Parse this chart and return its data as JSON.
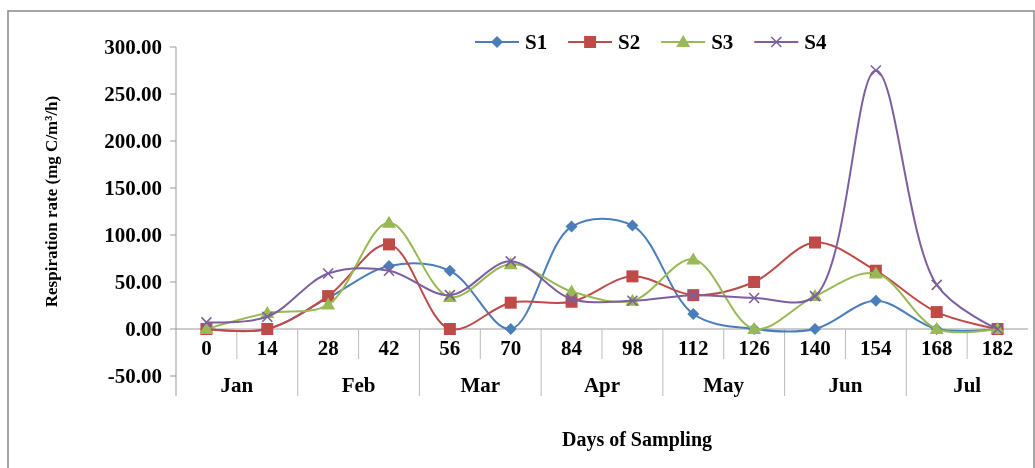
{
  "chart_data": {
    "type": "line",
    "xlabel": "Days of Sampling",
    "ylabel": "Respiration rate (mg C/m³/h)",
    "categories": [
      "0",
      "14",
      "28",
      "42",
      "56",
      "70",
      "84",
      "98",
      "112",
      "126",
      "140",
      "154",
      "168",
      "182"
    ],
    "annotations": [
      "Jan",
      "Feb",
      "Mar",
      "Apr",
      "May",
      "Jun",
      "Jul"
    ],
    "series": [
      {
        "name": "S1",
        "color": "#4a7ebb",
        "marker": "diamond",
        "values": [
          0,
          0,
          33,
          67,
          62,
          0,
          109,
          110,
          16,
          0,
          0,
          30,
          0,
          0
        ]
      },
      {
        "name": "S2",
        "color": "#be4b48",
        "marker": "square",
        "values": [
          0,
          0,
          35,
          90,
          0,
          28,
          29,
          56,
          36,
          50,
          92,
          62,
          18,
          0
        ]
      },
      {
        "name": "S3",
        "color": "#98b954",
        "marker": "triangle",
        "values": [
          0,
          17,
          26,
          113,
          34,
          69,
          40,
          30,
          74,
          0,
          35,
          59,
          0,
          0
        ]
      },
      {
        "name": "S4",
        "color": "#7d5fa0",
        "marker": "cross",
        "values": [
          7,
          13,
          59,
          62,
          36,
          72,
          32,
          30,
          36,
          33,
          35,
          275,
          47,
          0
        ]
      }
    ],
    "ylim": [
      -50,
      300
    ],
    "yticks": [
      {
        "value": -50,
        "label": "-50.00"
      },
      {
        "value": 0,
        "label": "0.00"
      },
      {
        "value": 50,
        "label": "50.00"
      },
      {
        "value": 100,
        "label": "100.00"
      },
      {
        "value": 150,
        "label": "150.00"
      },
      {
        "value": 200,
        "label": "200.00"
      },
      {
        "value": 250,
        "label": "250.00"
      },
      {
        "value": 300,
        "label": "300.00"
      }
    ],
    "legend": "top right",
    "grid": false
  }
}
